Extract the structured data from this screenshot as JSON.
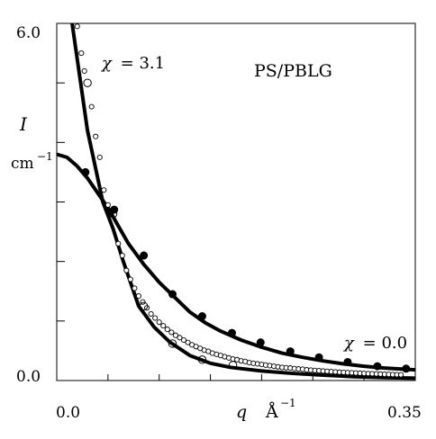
{
  "chart_data": {
    "type": "scatter",
    "annotation": "PS/PBLG",
    "ylabel_symbol": "I",
    "ylabel_unit": "cm",
    "ylabel_unit_exp": "−1",
    "xlabel_symbol": "q",
    "xlabel_unit": "Å",
    "xlabel_unit_exp": "−1",
    "x_tick_labels": {
      "min": "0.0",
      "max": "0.35"
    },
    "y_tick_labels": {
      "min": "0.0",
      "max": "6.0"
    },
    "xlim": [
      0.0,
      0.35
    ],
    "ylim": [
      0.0,
      6.0
    ],
    "x_ticks": [
      0.0,
      0.05,
      0.1,
      0.15,
      0.2,
      0.25,
      0.3,
      0.35
    ],
    "y_ticks": [
      0.0,
      1.0,
      2.0,
      3.0,
      4.0,
      5.0,
      6.0
    ],
    "grid": false,
    "series": [
      {
        "name": "χ = 3.1",
        "label_symbol": "χ",
        "label_value": "= 3.1",
        "marker": "open-circle",
        "fit_curve": [
          [
            0.015,
            6.0
          ],
          [
            0.03,
            4.2
          ],
          [
            0.045,
            3.0
          ],
          [
            0.055,
            2.55
          ],
          [
            0.065,
            2.0
          ],
          [
            0.08,
            1.25
          ],
          [
            0.095,
            0.9
          ],
          [
            0.11,
            0.65
          ],
          [
            0.13,
            0.42
          ],
          [
            0.15,
            0.29
          ],
          [
            0.17,
            0.22
          ],
          [
            0.2,
            0.16
          ],
          [
            0.23,
            0.12
          ],
          [
            0.26,
            0.09
          ],
          [
            0.29,
            0.065
          ],
          [
            0.32,
            0.05
          ],
          [
            0.35,
            0.04
          ]
        ],
        "large_points": [
          [
            0.03,
            5.0
          ],
          [
            0.055,
            2.8
          ],
          [
            0.085,
            1.25
          ],
          [
            0.113,
            0.62
          ],
          [
            0.142,
            0.35
          ],
          [
            0.172,
            0.26
          ]
        ],
        "small_points": [
          [
            0.02,
            5.95
          ],
          [
            0.024,
            5.5
          ],
          [
            0.027,
            5.2
          ],
          [
            0.034,
            4.6
          ],
          [
            0.038,
            4.1
          ],
          [
            0.042,
            3.75
          ],
          [
            0.046,
            3.2
          ],
          [
            0.05,
            2.95
          ],
          [
            0.06,
            2.3
          ],
          [
            0.064,
            2.1
          ],
          [
            0.068,
            1.85
          ],
          [
            0.072,
            1.7
          ],
          [
            0.076,
            1.55
          ],
          [
            0.08,
            1.42
          ],
          [
            0.084,
            1.32
          ],
          [
            0.088,
            1.22
          ],
          [
            0.092,
            1.12
          ],
          [
            0.096,
            1.05
          ],
          [
            0.1,
            0.98
          ],
          [
            0.104,
            0.92
          ],
          [
            0.108,
            0.86
          ],
          [
            0.112,
            0.81
          ],
          [
            0.116,
            0.76
          ],
          [
            0.12,
            0.72
          ],
          [
            0.124,
            0.68
          ],
          [
            0.128,
            0.64
          ],
          [
            0.132,
            0.6
          ],
          [
            0.136,
            0.57
          ],
          [
            0.14,
            0.54
          ],
          [
            0.144,
            0.51
          ],
          [
            0.148,
            0.49
          ],
          [
            0.152,
            0.46
          ],
          [
            0.156,
            0.44
          ],
          [
            0.16,
            0.42
          ],
          [
            0.164,
            0.4
          ],
          [
            0.168,
            0.38
          ],
          [
            0.172,
            0.36
          ],
          [
            0.176,
            0.35
          ],
          [
            0.18,
            0.33
          ],
          [
            0.184,
            0.32
          ],
          [
            0.188,
            0.3
          ],
          [
            0.192,
            0.29
          ],
          [
            0.196,
            0.28
          ],
          [
            0.2,
            0.27
          ],
          [
            0.204,
            0.26
          ],
          [
            0.208,
            0.25
          ],
          [
            0.212,
            0.24
          ],
          [
            0.216,
            0.23
          ],
          [
            0.22,
            0.22
          ],
          [
            0.224,
            0.215
          ],
          [
            0.228,
            0.21
          ],
          [
            0.232,
            0.2
          ],
          [
            0.236,
            0.195
          ],
          [
            0.24,
            0.19
          ],
          [
            0.244,
            0.18
          ],
          [
            0.248,
            0.175
          ],
          [
            0.252,
            0.17
          ],
          [
            0.256,
            0.165
          ],
          [
            0.26,
            0.16
          ],
          [
            0.264,
            0.155
          ],
          [
            0.268,
            0.15
          ],
          [
            0.272,
            0.145
          ],
          [
            0.276,
            0.14
          ],
          [
            0.28,
            0.137
          ],
          [
            0.284,
            0.133
          ],
          [
            0.288,
            0.13
          ],
          [
            0.292,
            0.126
          ],
          [
            0.296,
            0.123
          ],
          [
            0.3,
            0.12
          ],
          [
            0.304,
            0.117
          ],
          [
            0.308,
            0.114
          ],
          [
            0.312,
            0.111
          ],
          [
            0.316,
            0.108
          ],
          [
            0.32,
            0.105
          ],
          [
            0.324,
            0.103
          ],
          [
            0.328,
            0.1
          ],
          [
            0.332,
            0.098
          ],
          [
            0.336,
            0.096
          ]
        ]
      },
      {
        "name": "χ = 0.0",
        "label_symbol": "χ",
        "label_value": "= 0.0",
        "marker": "filled-circle",
        "fit_curve": [
          [
            0.0,
            3.8
          ],
          [
            0.01,
            3.75
          ],
          [
            0.02,
            3.6
          ],
          [
            0.03,
            3.4
          ],
          [
            0.04,
            3.15
          ],
          [
            0.05,
            2.9
          ],
          [
            0.06,
            2.6
          ],
          [
            0.07,
            2.3
          ],
          [
            0.085,
            1.95
          ],
          [
            0.1,
            1.65
          ],
          [
            0.115,
            1.4
          ],
          [
            0.13,
            1.15
          ],
          [
            0.145,
            0.97
          ],
          [
            0.16,
            0.83
          ],
          [
            0.18,
            0.68
          ],
          [
            0.2,
            0.56
          ],
          [
            0.22,
            0.46
          ],
          [
            0.24,
            0.39
          ],
          [
            0.26,
            0.33
          ],
          [
            0.28,
            0.28
          ],
          [
            0.3,
            0.24
          ],
          [
            0.32,
            0.21
          ],
          [
            0.35,
            0.18
          ]
        ],
        "points": [
          [
            0.028,
            3.5
          ],
          [
            0.056,
            2.87
          ],
          [
            0.085,
            2.1
          ],
          [
            0.113,
            1.45
          ],
          [
            0.142,
            1.08
          ],
          [
            0.171,
            0.8
          ],
          [
            0.199,
            0.64
          ],
          [
            0.228,
            0.49
          ],
          [
            0.256,
            0.39
          ],
          [
            0.284,
            0.31
          ],
          [
            0.313,
            0.24
          ],
          [
            0.341,
            0.2
          ]
        ]
      }
    ]
  }
}
